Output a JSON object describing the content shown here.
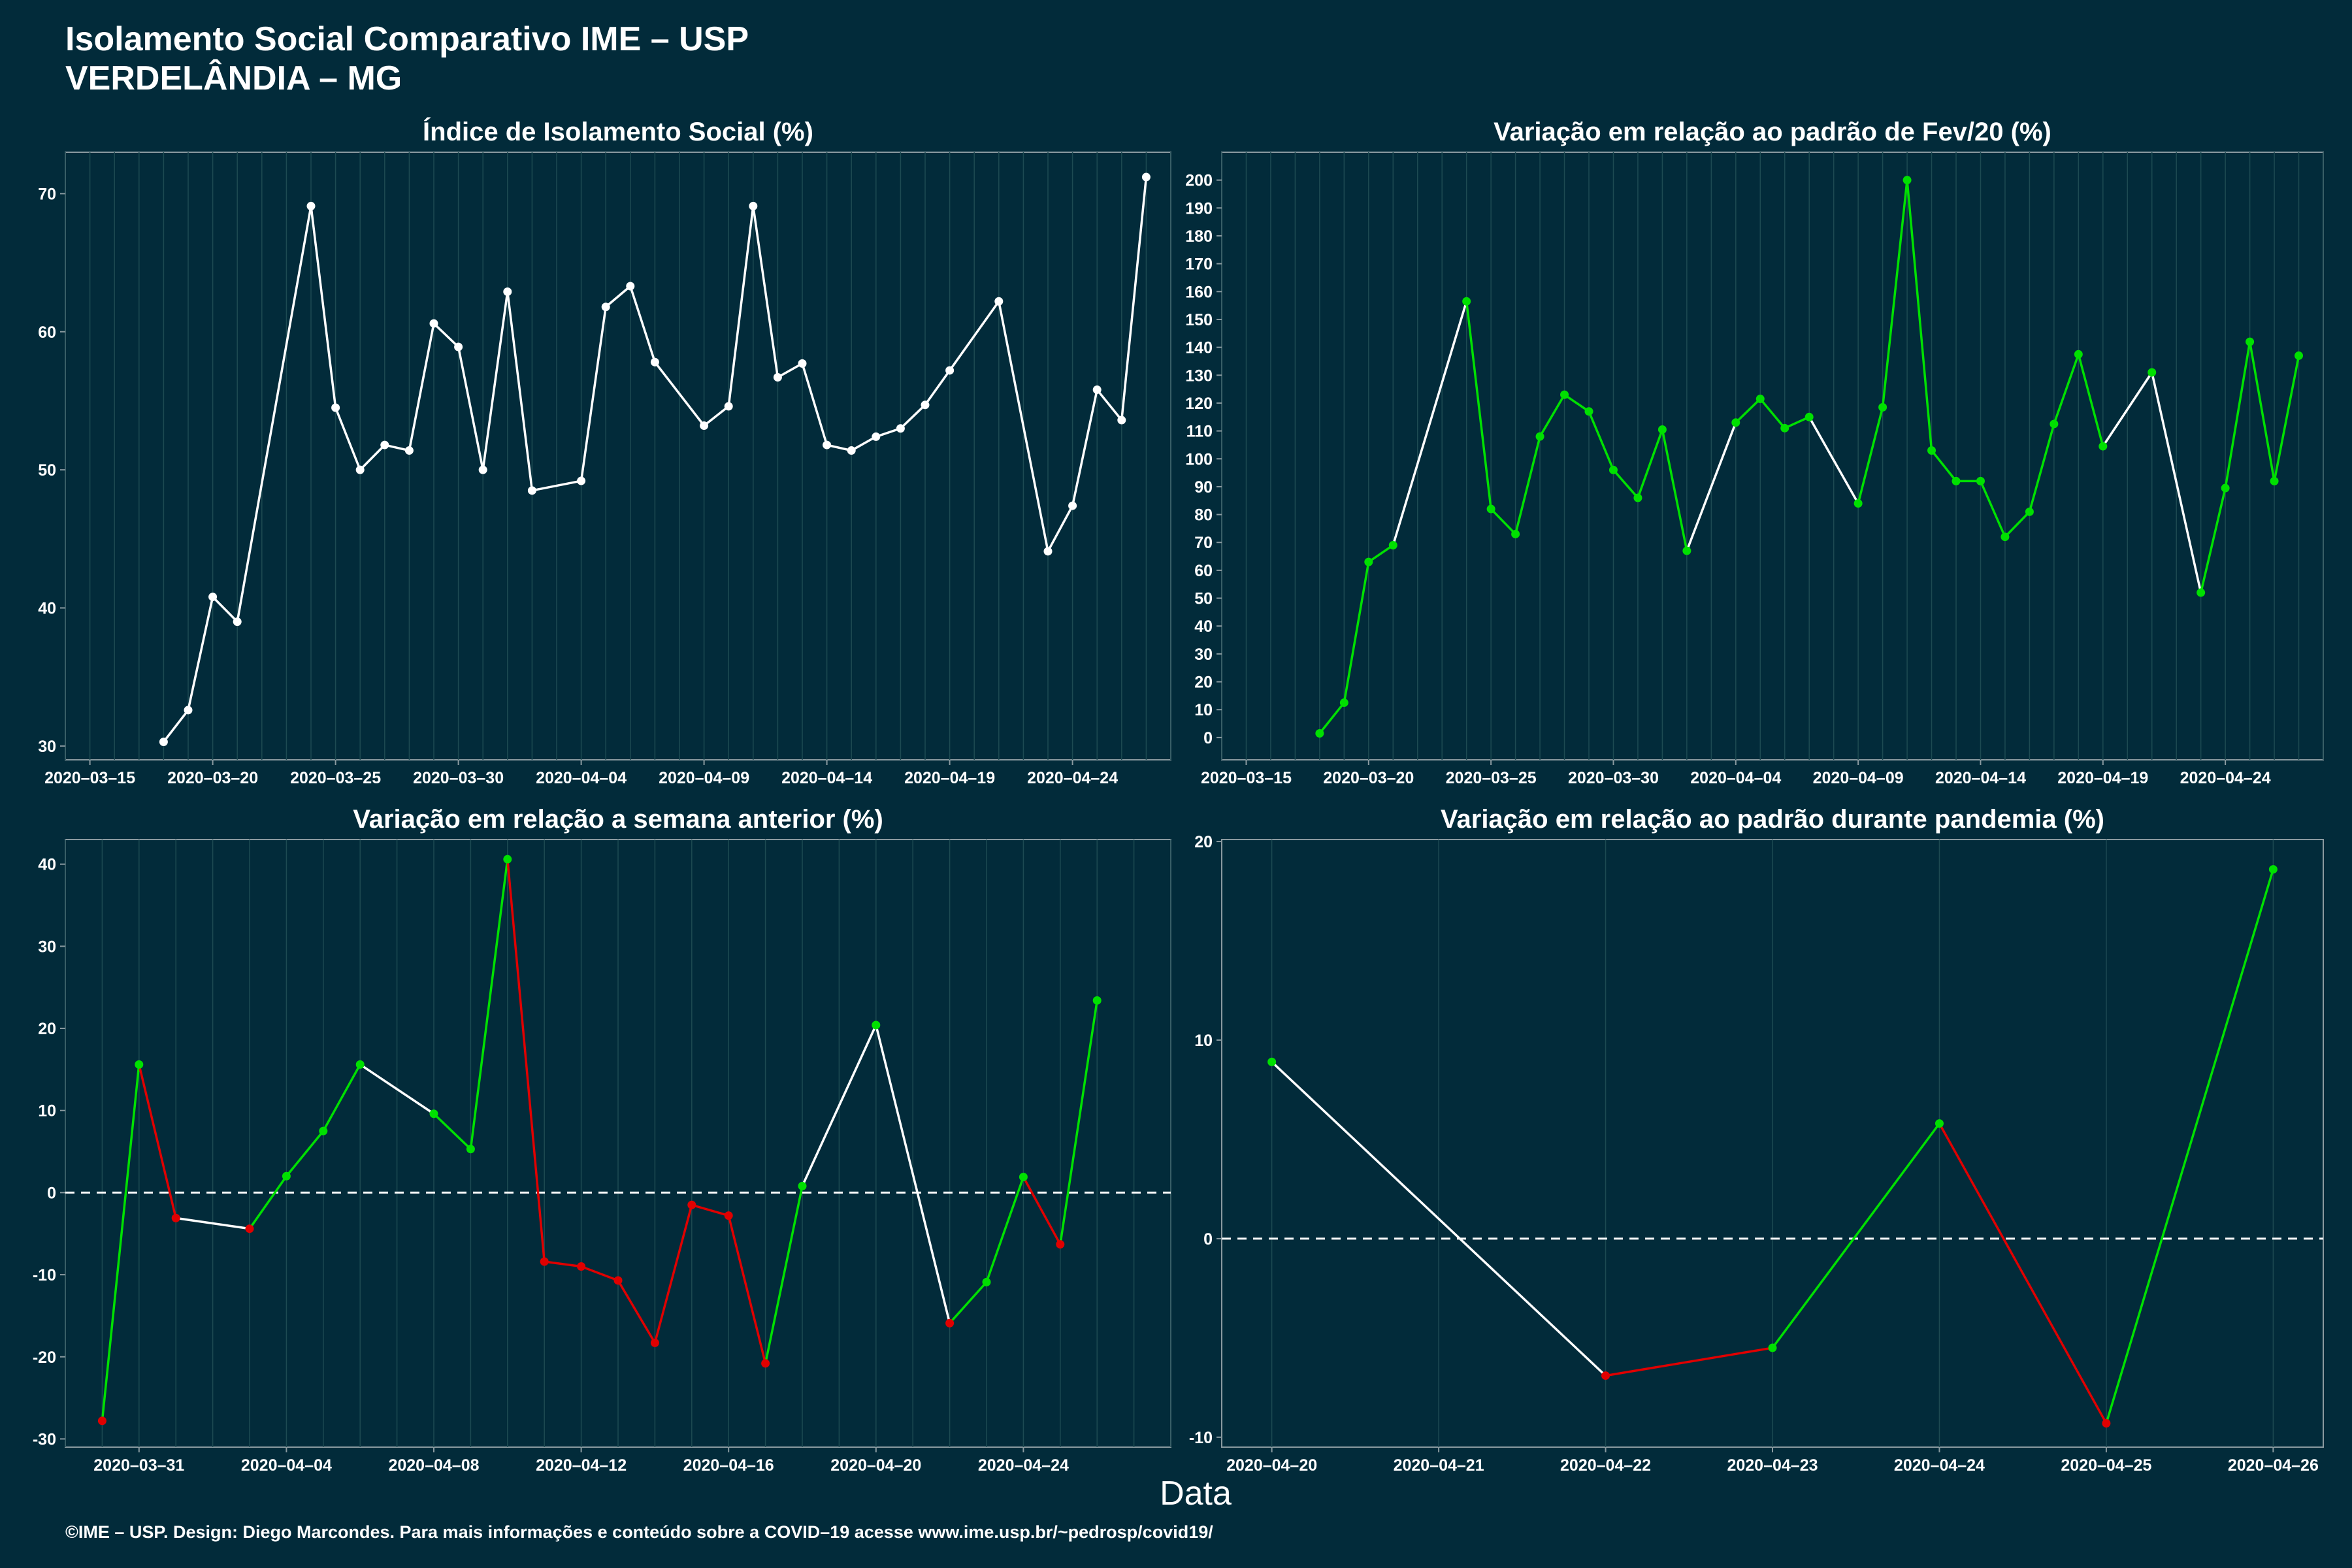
{
  "header": {
    "title": "Isolamento Social Comparativo IME – USP",
    "subtitle": "VERDELÂNDIA – MG"
  },
  "xlabel": "Data",
  "footer": "©IME – USP. Design: Diego Marcondes. Para mais informações e conteúdo sobre a COVID–19 acesse www.ime.usp.br/~pedrosp/covid19/",
  "colors": {
    "background": "#022B3A",
    "increase": "#00E000",
    "decrease": "#E00000",
    "neutral": "#FFFFFF"
  },
  "chart_data": [
    {
      "type": "line",
      "title": "Índice de Isolamento Social (%)",
      "x_ticks": [
        "2020–03–15",
        "2020–03–20",
        "2020–03–25",
        "2020–03–30",
        "2020–04–04",
        "2020–04–09",
        "2020–04–14",
        "2020–04–19",
        "2020–04–24"
      ],
      "y_ticks": [
        30,
        40,
        50,
        60,
        70
      ],
      "xlim": [
        "2020-03-14",
        "2020-04-28"
      ],
      "ylim": [
        29,
        73
      ],
      "line_color": "white",
      "x": [
        "2020-03-18",
        "2020-03-19",
        "2020-03-20",
        "2020-03-21",
        "2020-03-24",
        "2020-03-25",
        "2020-03-26",
        "2020-03-27",
        "2020-03-28",
        "2020-03-29",
        "2020-03-30",
        "2020-03-31",
        "2020-04-01",
        "2020-04-02",
        "2020-04-04",
        "2020-04-05",
        "2020-04-06",
        "2020-04-07",
        "2020-04-09",
        "2020-04-10",
        "2020-04-11",
        "2020-04-12",
        "2020-04-13",
        "2020-04-14",
        "2020-04-15",
        "2020-04-16",
        "2020-04-17",
        "2020-04-18",
        "2020-04-19",
        "2020-04-21",
        "2020-04-23",
        "2020-04-24",
        "2020-04-25",
        "2020-04-26",
        "2020-04-27"
      ],
      "y": [
        30.3,
        32.6,
        40.8,
        39.0,
        69.1,
        54.5,
        50.0,
        51.8,
        51.4,
        60.6,
        58.9,
        50.0,
        62.9,
        48.5,
        49.2,
        61.8,
        63.3,
        57.8,
        53.2,
        54.6,
        69.1,
        56.7,
        57.7,
        51.8,
        51.4,
        52.4,
        53.0,
        54.7,
        57.2,
        62.2,
        44.1,
        47.4,
        55.8,
        53.6,
        71.2
      ]
    },
    {
      "type": "line",
      "title": "Variação em relação ao padrão de Fev/20 (%)",
      "x_ticks": [
        "2020–03–15",
        "2020–03–20",
        "2020–03–25",
        "2020–03–30",
        "2020–04–04",
        "2020–04–09",
        "2020–04–14",
        "2020–04–19",
        "2020–04–24"
      ],
      "y_ticks": [
        0,
        10,
        20,
        30,
        40,
        50,
        60,
        70,
        80,
        90,
        100,
        110,
        120,
        130,
        140,
        150,
        160,
        170,
        180,
        190,
        200
      ],
      "xlim": [
        "2020-03-14",
        "2020-04-28"
      ],
      "ylim": [
        -8,
        210
      ],
      "x": [
        "2020-03-18",
        "2020-03-19",
        "2020-03-20",
        "2020-03-21",
        "2020-03-24",
        "2020-03-25",
        "2020-03-26",
        "2020-03-27",
        "2020-03-28",
        "2020-03-29",
        "2020-03-30",
        "2020-03-31",
        "2020-04-01",
        "2020-04-02",
        "2020-04-04",
        "2020-04-05",
        "2020-04-06",
        "2020-04-07",
        "2020-04-09",
        "2020-04-10",
        "2020-04-11",
        "2020-04-12",
        "2020-04-13",
        "2020-04-14",
        "2020-04-15",
        "2020-04-16",
        "2020-04-17",
        "2020-04-18",
        "2020-04-19",
        "2020-04-21",
        "2020-04-23",
        "2020-04-24",
        "2020-04-25",
        "2020-04-26",
        "2020-04-27"
      ],
      "y": [
        1.5,
        12.5,
        63,
        69,
        156.5,
        82,
        73,
        108,
        123,
        117,
        96,
        86,
        110.5,
        67,
        113,
        121.5,
        111,
        115,
        84,
        118.5,
        200,
        103,
        92,
        92,
        72,
        81,
        112.5,
        137.5,
        104.5,
        131,
        52,
        89.5,
        142,
        92,
        137
      ],
      "point_colors": [
        "green",
        "green",
        "green",
        "green",
        "green",
        "green",
        "green",
        "green",
        "green",
        "green",
        "green",
        "green",
        "green",
        "green",
        "green",
        "green",
        "green",
        "green",
        "green",
        "green",
        "green",
        "green",
        "green",
        "green",
        "green",
        "green",
        "green",
        "green",
        "green",
        "green",
        "green",
        "green",
        "green",
        "green",
        "green"
      ],
      "segment_colors": [
        "green",
        "green",
        "green",
        "white",
        "green",
        "green",
        "green",
        "green",
        "green",
        "green",
        "green",
        "green",
        "green",
        "white",
        "green",
        "green",
        "green",
        "white",
        "green",
        "green",
        "green",
        "green",
        "green",
        "green",
        "green",
        "green",
        "green",
        "green",
        "white",
        "white",
        "green",
        "green",
        "green",
        "green"
      ]
    },
    {
      "type": "line",
      "title": "Variação em relação a semana anterior (%)",
      "x_ticks": [
        "2020–03–31",
        "2020–04–04",
        "2020–04–08",
        "2020–04–12",
        "2020–04–16",
        "2020–04–20",
        "2020–04–24"
      ],
      "y_ticks": [
        -30,
        -20,
        -10,
        0,
        10,
        20,
        30,
        40
      ],
      "xlim": [
        "2020-03-29",
        "2020-04-28"
      ],
      "ylim": [
        -31,
        43
      ],
      "reference_line": 0,
      "x": [
        "2020-03-30",
        "2020-03-31",
        "2020-04-01",
        "2020-04-03",
        "2020-04-04",
        "2020-04-05",
        "2020-04-06",
        "2020-04-08",
        "2020-04-09",
        "2020-04-10",
        "2020-04-11",
        "2020-04-12",
        "2020-04-13",
        "2020-04-14",
        "2020-04-15",
        "2020-04-16",
        "2020-04-17",
        "2020-04-18",
        "2020-04-20",
        "2020-04-22",
        "2020-04-23",
        "2020-04-24",
        "2020-04-25",
        "2020-04-26"
      ],
      "y": [
        -27.8,
        15.6,
        -3.1,
        -4.4,
        2.0,
        7.5,
        15.6,
        9.6,
        5.3,
        40.6,
        -8.4,
        -9.0,
        -10.7,
        -18.3,
        -1.5,
        -2.8,
        -20.8,
        0.8,
        20.4,
        -15.9,
        -10.9,
        1.9,
        -6.3,
        23.4
      ],
      "point_colors": [
        "red",
        "green",
        "red",
        "red",
        "green",
        "green",
        "green",
        "green",
        "green",
        "green",
        "red",
        "red",
        "red",
        "red",
        "red",
        "red",
        "red",
        "green",
        "green",
        "red",
        "green",
        "green",
        "red",
        "green"
      ],
      "segment_colors": [
        "green",
        "red",
        "white",
        "green",
        "green",
        "green",
        "white",
        "green",
        "green",
        "red",
        "red",
        "red",
        "red",
        "red",
        "red",
        "red",
        "green",
        "white",
        "white",
        "green",
        "green",
        "red",
        "green"
      ]
    },
    {
      "type": "line",
      "title": "Variação em relação ao padrão durante pandemia (%)",
      "x_ticks": [
        "2020–04–20",
        "2020–04–21",
        "2020–04–22",
        "2020–04–23",
        "2020–04–24",
        "2020–04–25",
        "2020–04–26"
      ],
      "y_ticks": [
        -10,
        0,
        10,
        20
      ],
      "xlim": [
        "2020-04-19.7",
        "2020-04-26.3"
      ],
      "ylim": [
        -10.5,
        20.1
      ],
      "reference_line": 0,
      "x": [
        "2020-04-20",
        "2020-04-22",
        "2020-04-23",
        "2020-04-24",
        "2020-04-25",
        "2020-04-26"
      ],
      "y": [
        8.9,
        -6.9,
        -5.5,
        5.8,
        -9.3,
        18.6
      ],
      "point_colors": [
        "green",
        "red",
        "green",
        "green",
        "red",
        "green"
      ],
      "segment_colors": [
        "white",
        "red",
        "green",
        "red",
        "green"
      ]
    }
  ]
}
